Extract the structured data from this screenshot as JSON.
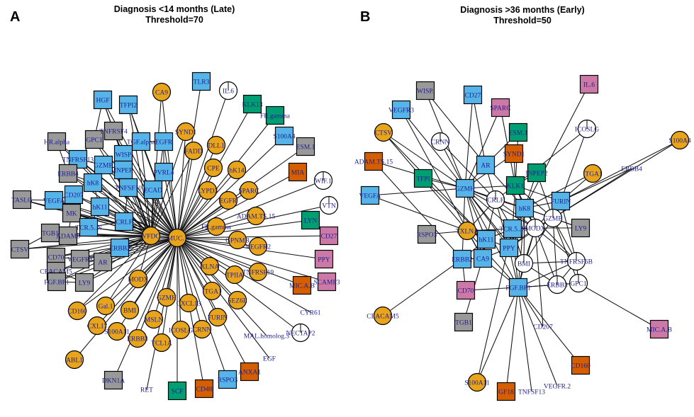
{
  "colors": {
    "circle_orange": "#E8A41A",
    "circle_white": "#FFFFFF",
    "sq_blue": "#56B4E9",
    "sq_gray": "#999999",
    "sq_green": "#009E73",
    "sq_darkorange": "#D55E00",
    "sq_pink": "#CC79A7",
    "label": "#1D1D8C"
  },
  "panels": [
    {
      "id": "A",
      "letter": "A",
      "title_line1": "Diagnosis <14 months (Late)",
      "title_line2": "Threshold=70",
      "nodes": [
        {
          "id": "MUC.1",
          "label": "MUC.1",
          "shape": "circle",
          "color": "circle_orange"
        },
        {
          "id": "VFDC",
          "label": "VFDC",
          "shape": "circle",
          "color": "circle_orange"
        },
        {
          "id": "TLR3",
          "label": "TLR3",
          "shape": "square",
          "color": "sq_blue"
        },
        {
          "id": "IL.6",
          "label": "IL.6",
          "shape": "circle",
          "color": "circle_white"
        },
        {
          "id": "CA9",
          "label": "CA9",
          "shape": "circle",
          "color": "circle_orange"
        },
        {
          "id": "KLK13",
          "label": "KLK13",
          "shape": "square",
          "color": "sq_green"
        },
        {
          "id": "FR.gamma",
          "label": "FR.gamma",
          "shape": "square",
          "color": "sq_green"
        },
        {
          "id": "HGF",
          "label": "HGF",
          "shape": "square",
          "color": "sq_blue"
        },
        {
          "id": "TFPI2",
          "label": "TFPI2",
          "shape": "square",
          "color": "sq_blue"
        },
        {
          "id": "SYND1",
          "label": "SYND1",
          "shape": "circle",
          "color": "circle_orange"
        },
        {
          "id": "FADD",
          "label": "FADD",
          "shape": "circle",
          "color": "circle_orange"
        },
        {
          "id": "DLL1",
          "label": "DLL1",
          "shape": "circle",
          "color": "circle_orange"
        },
        {
          "id": "S100A4",
          "label": "S100A4",
          "shape": "square",
          "color": "sq_blue"
        },
        {
          "id": "ESM.1",
          "label": "ESM.1",
          "shape": "square",
          "color": "sq_gray"
        },
        {
          "id": "HR.alpha",
          "label": "HR.alpha",
          "shape": "square",
          "color": "sq_gray"
        },
        {
          "id": "GPC1",
          "label": "GPC1",
          "shape": "square",
          "color": "sq_gray"
        },
        {
          "id": "TNFRSF4",
          "label": "TNFRSF4",
          "shape": "square",
          "color": "sq_gray"
        },
        {
          "id": "TGF.alpha",
          "label": "TGF.alpha",
          "shape": "square",
          "color": "sq_blue"
        },
        {
          "id": "EGFR",
          "label": "EGFR",
          "shape": "square",
          "color": "sq_blue"
        },
        {
          "id": "CPE",
          "label": "CPE",
          "shape": "circle",
          "color": "circle_orange"
        },
        {
          "id": "hK14",
          "label": "hK14",
          "shape": "circle",
          "color": "circle_orange"
        },
        {
          "id": "TNFRSF13",
          "label": "TNFRSF13",
          "shape": "square",
          "color": "sq_blue"
        },
        {
          "id": "WISP",
          "label": "WISP",
          "shape": "square",
          "color": "sq_blue"
        },
        {
          "id": "GZMB",
          "label": "GZMB",
          "shape": "square",
          "color": "sq_blue"
        },
        {
          "id": "ERBB4",
          "label": "ERBB4",
          "shape": "square",
          "color": "sq_gray"
        },
        {
          "id": "INPEP",
          "label": "INPEP",
          "shape": "square",
          "color": "sq_blue"
        },
        {
          "id": "PVRL4",
          "label": "PVRL4",
          "shape": "square",
          "color": "sq_blue"
        },
        {
          "id": "MIA",
          "label": "MIA",
          "shape": "square",
          "color": "sq_darkorange"
        },
        {
          "id": "WIF.1",
          "label": "WIF.1",
          "shape": "circle",
          "color": "circle_white"
        },
        {
          "id": "hK8",
          "label": "hK8",
          "shape": "square",
          "color": "sq_blue"
        },
        {
          "id": "ECAD",
          "label": "ECAD",
          "shape": "square",
          "color": "sq_blue"
        },
        {
          "id": "LYPD3",
          "label": "LYPD3",
          "shape": "circle",
          "color": "circle_orange"
        },
        {
          "id": "VTN",
          "label": "VTN",
          "shape": "circle",
          "color": "circle_white"
        },
        {
          "id": "EGFR.b",
          "label": "EGFR",
          "shape": "circle",
          "color": "circle_orange"
        },
        {
          "id": "SPARC",
          "label": "SPARC",
          "shape": "circle",
          "color": "circle_orange"
        },
        {
          "id": "TASLG",
          "label": "TASLG",
          "shape": "square",
          "color": "sq_gray"
        },
        {
          "id": "VEGFA",
          "label": "VEGFA",
          "shape": "square",
          "color": "sq_blue"
        },
        {
          "id": "CD207",
          "label": "CD207",
          "shape": "square",
          "color": "sq_blue"
        },
        {
          "id": "TNFSF10",
          "label": "TNFSF10",
          "shape": "square",
          "color": "sq_blue"
        },
        {
          "id": "LYN",
          "label": "LYN",
          "shape": "square",
          "color": "sq_green"
        },
        {
          "id": "MK",
          "label": "MK",
          "shape": "square",
          "color": "sq_gray"
        },
        {
          "id": "hK11",
          "label": "hK11",
          "shape": "square",
          "color": "sq_blue"
        },
        {
          "id": "ADAM.TS.15",
          "label": "ADAM.TS.15",
          "shape": "circle",
          "color": "circle_orange"
        },
        {
          "id": "FR.gamma.b",
          "label": "FR.gamma",
          "shape": "circle",
          "color": "circle_orange"
        },
        {
          "id": "CD27",
          "label": "CD27",
          "shape": "square",
          "color": "sq_pink"
        },
        {
          "id": "TGB1",
          "label": "TGB1",
          "shape": "square",
          "color": "sq_gray"
        },
        {
          "id": "ADAM8",
          "label": "ADAM8",
          "shape": "square",
          "color": "sq_gray"
        },
        {
          "id": "TCR.5.N",
          "label": "TCR.5..N",
          "shape": "square",
          "color": "sq_blue"
        },
        {
          "id": "CRLF",
          "label": "CRLF",
          "shape": "square",
          "color": "sq_blue"
        },
        {
          "id": "CTSV",
          "label": "CTSV",
          "shape": "square",
          "color": "sq_gray"
        },
        {
          "id": "GPNMB",
          "label": "GPNMB",
          "shape": "circle",
          "color": "circle_orange"
        },
        {
          "id": "VEGFR2",
          "label": "VEGFR2",
          "shape": "circle",
          "color": "circle_orange"
        },
        {
          "id": "CD70",
          "label": "CD70",
          "shape": "square",
          "color": "sq_gray"
        },
        {
          "id": "VEGFR3",
          "label": "VEGFR3",
          "shape": "square",
          "color": "sq_gray"
        },
        {
          "id": "AR",
          "label": "AR",
          "shape": "square",
          "color": "sq_gray"
        },
        {
          "id": "ERBB2",
          "label": "ERBB2",
          "shape": "square",
          "color": "sq_blue"
        },
        {
          "id": "PPY",
          "label": "PPY",
          "shape": "square",
          "color": "sq_pink"
        },
        {
          "id": "CEACAM5",
          "label": "CEACAM5",
          "shape": "square",
          "color": "sq_gray"
        },
        {
          "id": "FGFBP1",
          "label": "FGF.BP1",
          "shape": "square",
          "color": "sq_gray"
        },
        {
          "id": "LY9",
          "label": "LY9",
          "shape": "square",
          "color": "sq_gray"
        },
        {
          "id": "XLNA",
          "label": "XLNA",
          "shape": "circle",
          "color": "circle_orange"
        },
        {
          "id": "TPIIA",
          "label": "TPIIA",
          "shape": "circle",
          "color": "circle_orange"
        },
        {
          "id": "TNFRSF19",
          "label": "TNFRSF19",
          "shape": "circle",
          "color": "circle_orange"
        },
        {
          "id": "MIC.AB",
          "label": "MIC.A.B",
          "shape": "square",
          "color": "sq_darkorange"
        },
        {
          "id": "SCAMP3",
          "label": "SCAMP3",
          "shape": "square",
          "color": "sq_pink"
        },
        {
          "id": "MODX",
          "label": "MODX",
          "shape": "circle",
          "color": "circle_orange"
        },
        {
          "id": "ITGA1",
          "label": "ITGA1",
          "shape": "circle",
          "color": "circle_orange"
        },
        {
          "id": "SEZ6L",
          "label": "SEZ6L",
          "shape": "circle",
          "color": "circle_orange"
        },
        {
          "id": "CYR61",
          "label": "CYR61",
          "shape": "none",
          "color": "label"
        },
        {
          "id": "GZMH",
          "label": "GZMH",
          "shape": "circle",
          "color": "circle_orange"
        },
        {
          "id": "CXCL13",
          "label": "CXCL13",
          "shape": "circle",
          "color": "circle_orange"
        },
        {
          "id": "FURIN",
          "label": "FURIN",
          "shape": "circle",
          "color": "circle_orange"
        },
        {
          "id": "CD160",
          "label": "CD160",
          "shape": "circle",
          "color": "circle_orange"
        },
        {
          "id": "Gal.1",
          "label": "Gal.1",
          "shape": "circle",
          "color": "circle_orange"
        },
        {
          "id": "BMI",
          "label": "BMI",
          "shape": "circle",
          "color": "circle_orange"
        },
        {
          "id": "MSLN",
          "label": "MSLN",
          "shape": "circle",
          "color": "circle_orange"
        },
        {
          "id": "ICOSLG",
          "label": "ICOSLG",
          "shape": "circle",
          "color": "circle_orange"
        },
        {
          "id": "CRNN",
          "label": "CRNN",
          "shape": "circle",
          "color": "circle_orange"
        },
        {
          "id": "MAL.homolog.3",
          "label": "MAL.homolog.3",
          "shape": "none",
          "color": "label"
        },
        {
          "id": "NECTAP2",
          "label": "NECTAP2",
          "shape": "circle",
          "color": "circle_white"
        },
        {
          "id": "CXL17",
          "label": "CXL17",
          "shape": "circle",
          "color": "circle_orange"
        },
        {
          "id": "S100A11",
          "label": "S100A11",
          "shape": "circle",
          "color": "circle_orange"
        },
        {
          "id": "ERBB3",
          "label": "ERBB3",
          "shape": "circle",
          "color": "circle_orange"
        },
        {
          "id": "TCL1A",
          "label": "TCL1A",
          "shape": "circle",
          "color": "circle_orange"
        },
        {
          "id": "EGF",
          "label": "EGF",
          "shape": "none",
          "color": "label"
        },
        {
          "id": "ABL1",
          "label": "ABL1",
          "shape": "circle",
          "color": "circle_orange"
        },
        {
          "id": "DKN1A",
          "label": "DKN1A",
          "shape": "square",
          "color": "sq_gray"
        },
        {
          "id": "RET",
          "label": "RET",
          "shape": "none",
          "color": "label"
        },
        {
          "id": "SCF",
          "label": "SCF",
          "shape": "square",
          "color": "sq_green"
        },
        {
          "id": "CD48",
          "label": "CD48",
          "shape": "square",
          "color": "sq_darkorange"
        },
        {
          "id": "RSPO3",
          "label": "RSPO3",
          "shape": "square",
          "color": "sq_blue"
        },
        {
          "id": "ANXA1",
          "label": "ANXA1",
          "shape": "square",
          "color": "sq_darkorange"
        }
      ]
    },
    {
      "id": "B",
      "letter": "B",
      "title_line1": "Diagnosis >36 months (Early)",
      "title_line2": "Threshold=50",
      "nodes": [
        {
          "id": "WISP",
          "label": "WISP.",
          "shape": "square",
          "color": "sq_gray"
        },
        {
          "id": "CD27",
          "label": "CD27",
          "shape": "square",
          "color": "sq_blue"
        },
        {
          "id": "IL.6",
          "label": "IL.6",
          "shape": "square",
          "color": "sq_pink"
        },
        {
          "id": "VEGFR3",
          "label": "VEGFR3",
          "shape": "square",
          "color": "sq_blue"
        },
        {
          "id": "SPARC",
          "label": "SPARC",
          "shape": "square",
          "color": "sq_pink"
        },
        {
          "id": "S100A4",
          "label": "S100A4",
          "shape": "circle",
          "color": "circle_orange"
        },
        {
          "id": "CTSV",
          "label": "CTSV",
          "shape": "circle",
          "color": "circle_orange"
        },
        {
          "id": "ESM1",
          "label": "ESM.1",
          "shape": "square",
          "color": "sq_green"
        },
        {
          "id": "ICOSLG",
          "label": "ICOSLG",
          "shape": "circle",
          "color": "circle_white"
        },
        {
          "id": "CRNN",
          "label": "CRNN",
          "shape": "circle",
          "color": "circle_white"
        },
        {
          "id": "ADAM.TS.15",
          "label": "ADAM.TS.15",
          "shape": "square",
          "color": "sq_darkorange"
        },
        {
          "id": "SYND1",
          "label": "SYND1",
          "shape": "square",
          "color": "sq_darkorange"
        },
        {
          "id": "ERBB4",
          "label": "ERBB4",
          "shape": "none",
          "color": "label"
        },
        {
          "id": "AR",
          "label": "AR",
          "shape": "square",
          "color": "sq_blue"
        },
        {
          "id": "TFPI",
          "label": "TFPI",
          "shape": "square",
          "color": "sq_green"
        },
        {
          "id": "INPEP2",
          "label": "INPEP2",
          "shape": "square",
          "color": "sq_green"
        },
        {
          "id": "ITGA1",
          "label": "ITGA1",
          "shape": "circle",
          "color": "circle_orange"
        },
        {
          "id": "VEGFA",
          "label": "VEGFA",
          "shape": "square",
          "color": "sq_blue"
        },
        {
          "id": "GZMH",
          "label": "GZMH",
          "shape": "square",
          "color": "sq_blue"
        },
        {
          "id": "KLK1",
          "label": "KLK1",
          "shape": "square",
          "color": "sq_green"
        },
        {
          "id": "CRLF",
          "label": "CRLF",
          "shape": "circle",
          "color": "circle_white"
        },
        {
          "id": "FURIN",
          "label": "FURIN",
          "shape": "square",
          "color": "sq_blue"
        },
        {
          "id": "hK8",
          "label": "hK8",
          "shape": "square",
          "color": "sq_blue"
        },
        {
          "id": "GZMB",
          "label": "GZMB",
          "shape": "circle",
          "color": "circle_white"
        },
        {
          "id": "LY9",
          "label": "LY9",
          "shape": "square",
          "color": "sq_gray"
        },
        {
          "id": "RSPO3",
          "label": "RSPO3",
          "shape": "square",
          "color": "sq_gray"
        },
        {
          "id": "TXLNA",
          "label": "TXLNA",
          "shape": "circle",
          "color": "circle_orange"
        },
        {
          "id": "TCR5N",
          "label": "TCR.5..N",
          "shape": "square",
          "color": "sq_blue"
        },
        {
          "id": "MODX",
          "label": "MODX",
          "shape": "circle",
          "color": "circle_white"
        },
        {
          "id": "hK11",
          "label": "hK11",
          "shape": "square",
          "color": "sq_blue"
        },
        {
          "id": "PPY",
          "label": "PPY",
          "shape": "square",
          "color": "sq_blue"
        },
        {
          "id": "ERBB2",
          "label": "ERBB2",
          "shape": "square",
          "color": "sq_blue"
        },
        {
          "id": "CA9",
          "label": "CA9",
          "shape": "square",
          "color": "sq_blue"
        },
        {
          "id": "BMI",
          "label": "BMI",
          "shape": "circle",
          "color": "circle_white"
        },
        {
          "id": "TNFRSF6B",
          "label": "TNFRSF6B",
          "shape": "circle",
          "color": "circle_white"
        },
        {
          "id": "CD70",
          "label": "CD70",
          "shape": "square",
          "color": "sq_pink"
        },
        {
          "id": "FGFBP1",
          "label": "FGF.BP1",
          "shape": "square",
          "color": "sq_blue"
        },
        {
          "id": "ERBB3",
          "label": "ERBB3",
          "shape": "circle",
          "color": "circle_white"
        },
        {
          "id": "GPC1",
          "label": "GPC1",
          "shape": "circle",
          "color": "circle_white"
        },
        {
          "id": "CEACAM5",
          "label": "CEACAM5",
          "shape": "circle",
          "color": "circle_orange"
        },
        {
          "id": "TGB1",
          "label": "TGB1",
          "shape": "square",
          "color": "sq_gray"
        },
        {
          "id": "CD207",
          "label": "CD207",
          "shape": "none",
          "color": "label"
        },
        {
          "id": "MICAB",
          "label": "MIC.A.B",
          "shape": "square",
          "color": "sq_pink"
        },
        {
          "id": "CD160",
          "label": "CD160",
          "shape": "square",
          "color": "sq_darkorange"
        },
        {
          "id": "S100A11",
          "label": "S100A11",
          "shape": "circle",
          "color": "circle_orange"
        },
        {
          "id": "GF18",
          "label": "GF18",
          "shape": "square",
          "color": "sq_darkorange"
        },
        {
          "id": "TNFSF13",
          "label": "TNFSF13",
          "shape": "none",
          "color": "label"
        },
        {
          "id": "VEGFR2",
          "label": "VEGFR.2",
          "shape": "none",
          "color": "label"
        }
      ]
    }
  ]
}
